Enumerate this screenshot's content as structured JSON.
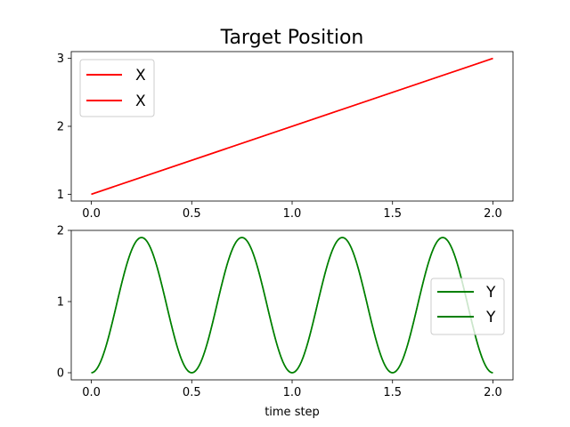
{
  "chart_data": [
    {
      "type": "line",
      "title": "Target Position",
      "xlabel": "",
      "ylabel": "",
      "xlim": [
        -0.1,
        2.1
      ],
      "ylim": [
        0.9,
        3.1
      ],
      "xticks": [
        0.0,
        0.5,
        1.0,
        1.5,
        2.0
      ],
      "xtick_labels": [
        "0.0",
        "0.5",
        "1.0",
        "1.5",
        "2.0"
      ],
      "yticks": [
        1,
        2,
        3
      ],
      "ytick_labels": [
        "1",
        "2",
        "3"
      ],
      "grid": false,
      "legend_position": "upper-left",
      "series": [
        {
          "name": "X",
          "color": "#ff0000",
          "formula": "1 + x",
          "x": [
            0.0,
            2.0
          ],
          "y": [
            1.0,
            3.0
          ]
        },
        {
          "name": "X",
          "color": "#ff0000",
          "formula": "1 + x",
          "x": [
            0.0,
            2.0
          ],
          "y": [
            1.0,
            3.0
          ]
        }
      ]
    },
    {
      "type": "line",
      "title": "",
      "xlabel": "time step",
      "ylabel": "",
      "xlim": [
        -0.1,
        2.1
      ],
      "ylim": [
        -0.1,
        2.0
      ],
      "xticks": [
        0.0,
        0.5,
        1.0,
        1.5,
        2.0
      ],
      "xtick_labels": [
        "0.0",
        "0.5",
        "1.0",
        "1.5",
        "2.0"
      ],
      "yticks": [
        0,
        1,
        2
      ],
      "ytick_labels": [
        "0",
        "1",
        "2"
      ],
      "grid": false,
      "legend_position": "center-right",
      "series": [
        {
          "name": "Y",
          "color": "#008000",
          "formula": "0.95 * (1 - cos(4*pi*x))",
          "x_range": [
            0.0,
            2.0
          ]
        },
        {
          "name": "Y",
          "color": "#008000",
          "formula": "0.95 * (1 - cos(4*pi*x))",
          "x_range": [
            0.0,
            2.0
          ]
        }
      ]
    }
  ]
}
